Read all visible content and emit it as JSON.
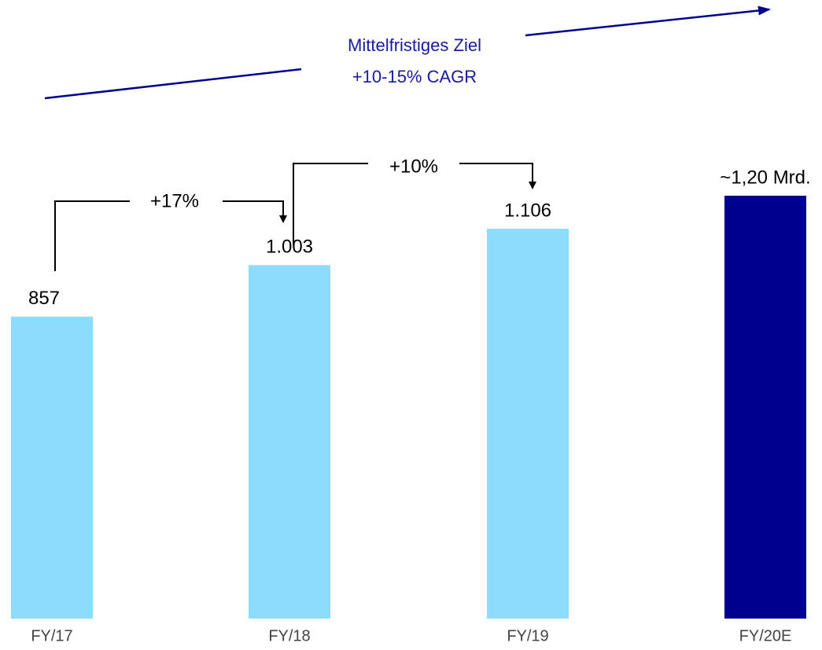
{
  "chart_data": {
    "type": "bar",
    "categories": [
      "FY/17",
      "FY/18",
      "FY/19",
      "FY/20E"
    ],
    "values": [
      857,
      1003,
      1106,
      1200
    ],
    "value_labels": [
      "857",
      "1.003",
      "1.106",
      "~1,20 Mrd."
    ],
    "colors": [
      "#8ddcfd",
      "#8ddcfd",
      "#8ddcfd",
      "#00008f"
    ],
    "annotations": {
      "target": [
        "Mittelfristiges Ziel",
        "+10-15% CAGR"
      ],
      "growth": [
        "+17%",
        "+10%"
      ]
    }
  }
}
